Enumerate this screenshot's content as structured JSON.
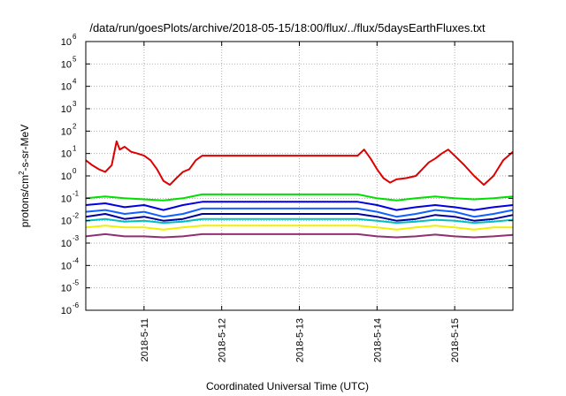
{
  "chart_data": {
    "type": "line",
    "title": "/data/run/goesPlots/archive/2018-05-15/18:00/flux/../flux/5daysEarthFluxes.txt",
    "xlabel": "Coordinated Universal Time (UTC)",
    "ylabel": "protons/cm2-s-sr-MeV",
    "ylabel_parts": {
      "pre": "protons/cm",
      "sup": "2",
      "post": "-s-sr-MeV"
    },
    "y_scale": "log",
    "ylim": [
      1e-06,
      1000000.0
    ],
    "y_ticks": [
      {
        "value": 1e-06,
        "base": "10",
        "exp": "-6"
      },
      {
        "value": 1e-05,
        "base": "10",
        "exp": "-5"
      },
      {
        "value": 0.0001,
        "base": "10",
        "exp": "-4"
      },
      {
        "value": 0.001,
        "base": "10",
        "exp": "-3"
      },
      {
        "value": 0.01,
        "base": "10",
        "exp": "-2"
      },
      {
        "value": 0.1,
        "base": "10",
        "exp": "-1"
      },
      {
        "value": 1.0,
        "base": "10",
        "exp": "0"
      },
      {
        "value": 10.0,
        "base": "10",
        "exp": "1"
      },
      {
        "value": 100.0,
        "base": "10",
        "exp": "2"
      },
      {
        "value": 1000.0,
        "base": "10",
        "exp": "3"
      },
      {
        "value": 10000.0,
        "base": "10",
        "exp": "4"
      },
      {
        "value": 100000.0,
        "base": "10",
        "exp": "5"
      },
      {
        "value": 1000000.0,
        "base": "10",
        "exp": "6"
      }
    ],
    "xlim": [
      "2018-05-10T06:00",
      "2018-05-15T18:00"
    ],
    "x_ticks": [
      {
        "value": "2018-05-11T00:00",
        "label": "2018-5-11"
      },
      {
        "value": "2018-05-12T00:00",
        "label": "2018-5-12"
      },
      {
        "value": "2018-05-13T00:00",
        "label": "2018-5-13"
      },
      {
        "value": "2018-05-14T00:00",
        "label": "2018-5-14"
      },
      {
        "value": "2018-05-15T00:00",
        "label": "2018-5-15"
      }
    ],
    "grid": true,
    "legend": "none",
    "data_gap": [
      "2018-05-11T18:00",
      "2018-05-13T18:00"
    ],
    "series": [
      {
        "color": "#e00000",
        "x": [
          "2018-05-10T06:00",
          "2018-05-10T08:00",
          "2018-05-10T10:00",
          "2018-05-10T12:00",
          "2018-05-10T14:00",
          "2018-05-10T15:30",
          "2018-05-10T16:30",
          "2018-05-10T18:00",
          "2018-05-10T20:00",
          "2018-05-10T22:00",
          "2018-05-11T00:00",
          "2018-05-11T02:00",
          "2018-05-11T04:00",
          "2018-05-11T06:00",
          "2018-05-11T08:00",
          "2018-05-11T10:00",
          "2018-05-11T12:00",
          "2018-05-11T14:00",
          "2018-05-11T16:00",
          "2018-05-11T18:00",
          "2018-05-13T18:00",
          "2018-05-13T20:00",
          "2018-05-13T22:00",
          "2018-05-14T00:00",
          "2018-05-14T02:00",
          "2018-05-14T04:00",
          "2018-05-14T06:00",
          "2018-05-14T09:00",
          "2018-05-14T12:00",
          "2018-05-14T14:00",
          "2018-05-14T16:00",
          "2018-05-14T18:00",
          "2018-05-14T20:00",
          "2018-05-14T22:00",
          "2018-05-15T00:00",
          "2018-05-15T03:00",
          "2018-05-15T06:00",
          "2018-05-15T09:00",
          "2018-05-15T12:00",
          "2018-05-15T15:00",
          "2018-05-15T18:00"
        ],
        "values": [
          5,
          3,
          2,
          1.5,
          3,
          35,
          15,
          20,
          12,
          10,
          8,
          5,
          2,
          0.6,
          0.4,
          0.8,
          1.5,
          2,
          5,
          8,
          8,
          15,
          6,
          2,
          0.8,
          0.5,
          0.7,
          0.8,
          1,
          2,
          4,
          6,
          10,
          15,
          8,
          3,
          1,
          0.4,
          1,
          5,
          12
        ]
      },
      {
        "color": "#00e000",
        "x": [
          "2018-05-10T06:00",
          "2018-05-10T12:00",
          "2018-05-10T18:00",
          "2018-05-11T00:00",
          "2018-05-11T06:00",
          "2018-05-11T12:00",
          "2018-05-11T18:00",
          "2018-05-13T18:00",
          "2018-05-14T00:00",
          "2018-05-14T06:00",
          "2018-05-14T12:00",
          "2018-05-14T18:00",
          "2018-05-15T00:00",
          "2018-05-15T06:00",
          "2018-05-15T12:00",
          "2018-05-15T18:00"
        ],
        "values": [
          0.1,
          0.12,
          0.1,
          0.09,
          0.08,
          0.1,
          0.15,
          0.15,
          0.1,
          0.08,
          0.1,
          0.12,
          0.1,
          0.09,
          0.1,
          0.12
        ]
      },
      {
        "color": "#0000e0",
        "x": [
          "2018-05-10T06:00",
          "2018-05-10T12:00",
          "2018-05-10T18:00",
          "2018-05-11T00:00",
          "2018-05-11T06:00",
          "2018-05-11T12:00",
          "2018-05-11T18:00",
          "2018-05-13T18:00",
          "2018-05-14T00:00",
          "2018-05-14T06:00",
          "2018-05-14T12:00",
          "2018-05-14T18:00",
          "2018-05-15T00:00",
          "2018-05-15T06:00",
          "2018-05-15T12:00",
          "2018-05-15T18:00"
        ],
        "values": [
          0.05,
          0.06,
          0.04,
          0.05,
          0.03,
          0.05,
          0.07,
          0.07,
          0.05,
          0.03,
          0.04,
          0.05,
          0.04,
          0.03,
          0.04,
          0.05
        ]
      },
      {
        "color": "#1060ff",
        "x": [
          "2018-05-10T06:00",
          "2018-05-10T12:00",
          "2018-05-10T18:00",
          "2018-05-11T00:00",
          "2018-05-11T06:00",
          "2018-05-11T12:00",
          "2018-05-11T18:00",
          "2018-05-13T18:00",
          "2018-05-14T00:00",
          "2018-05-14T06:00",
          "2018-05-14T12:00",
          "2018-05-14T18:00",
          "2018-05-15T00:00",
          "2018-05-15T06:00",
          "2018-05-15T12:00",
          "2018-05-15T18:00"
        ],
        "values": [
          0.025,
          0.03,
          0.02,
          0.025,
          0.015,
          0.02,
          0.035,
          0.035,
          0.025,
          0.015,
          0.02,
          0.03,
          0.025,
          0.015,
          0.02,
          0.03
        ]
      },
      {
        "color": "#0000a0",
        "x": [
          "2018-05-10T06:00",
          "2018-05-10T12:00",
          "2018-05-10T18:00",
          "2018-05-11T00:00",
          "2018-05-11T06:00",
          "2018-05-11T12:00",
          "2018-05-11T18:00",
          "2018-05-13T18:00",
          "2018-05-14T00:00",
          "2018-05-14T06:00",
          "2018-05-14T12:00",
          "2018-05-14T18:00",
          "2018-05-15T00:00",
          "2018-05-15T06:00",
          "2018-05-15T12:00",
          "2018-05-15T18:00"
        ],
        "values": [
          0.015,
          0.02,
          0.012,
          0.015,
          0.01,
          0.012,
          0.02,
          0.02,
          0.015,
          0.01,
          0.012,
          0.018,
          0.015,
          0.01,
          0.012,
          0.018
        ]
      },
      {
        "color": "#00c0c0",
        "x": [
          "2018-05-10T06:00",
          "2018-05-10T12:00",
          "2018-05-10T18:00",
          "2018-05-11T00:00",
          "2018-05-11T06:00",
          "2018-05-11T12:00",
          "2018-05-11T18:00",
          "2018-05-13T18:00",
          "2018-05-14T00:00",
          "2018-05-14T06:00",
          "2018-05-14T12:00",
          "2018-05-14T18:00",
          "2018-05-15T00:00",
          "2018-05-15T06:00",
          "2018-05-15T12:00",
          "2018-05-15T18:00"
        ],
        "values": [
          0.01,
          0.012,
          0.009,
          0.01,
          0.008,
          0.009,
          0.012,
          0.012,
          0.01,
          0.008,
          0.009,
          0.011,
          0.01,
          0.008,
          0.009,
          0.011
        ]
      },
      {
        "color": "#f0f000",
        "x": [
          "2018-05-10T06:00",
          "2018-05-10T12:00",
          "2018-05-10T18:00",
          "2018-05-11T00:00",
          "2018-05-11T06:00",
          "2018-05-11T12:00",
          "2018-05-11T18:00",
          "2018-05-13T18:00",
          "2018-05-14T00:00",
          "2018-05-14T06:00",
          "2018-05-14T12:00",
          "2018-05-14T18:00",
          "2018-05-15T00:00",
          "2018-05-15T06:00",
          "2018-05-15T12:00",
          "2018-05-15T18:00"
        ],
        "values": [
          0.005,
          0.006,
          0.005,
          0.005,
          0.004,
          0.005,
          0.006,
          0.006,
          0.005,
          0.004,
          0.005,
          0.006,
          0.005,
          0.004,
          0.005,
          0.005
        ]
      },
      {
        "color": "#903070",
        "x": [
          "2018-05-10T06:00",
          "2018-05-10T12:00",
          "2018-05-10T18:00",
          "2018-05-11T00:00",
          "2018-05-11T06:00",
          "2018-05-11T12:00",
          "2018-05-11T18:00",
          "2018-05-13T18:00",
          "2018-05-14T00:00",
          "2018-05-14T06:00",
          "2018-05-14T12:00",
          "2018-05-14T18:00",
          "2018-05-15T00:00",
          "2018-05-15T06:00",
          "2018-05-15T12:00",
          "2018-05-15T18:00"
        ],
        "values": [
          0.002,
          0.0025,
          0.002,
          0.002,
          0.0018,
          0.002,
          0.0025,
          0.0025,
          0.002,
          0.0018,
          0.002,
          0.0024,
          0.002,
          0.0018,
          0.002,
          0.0023
        ]
      }
    ]
  }
}
